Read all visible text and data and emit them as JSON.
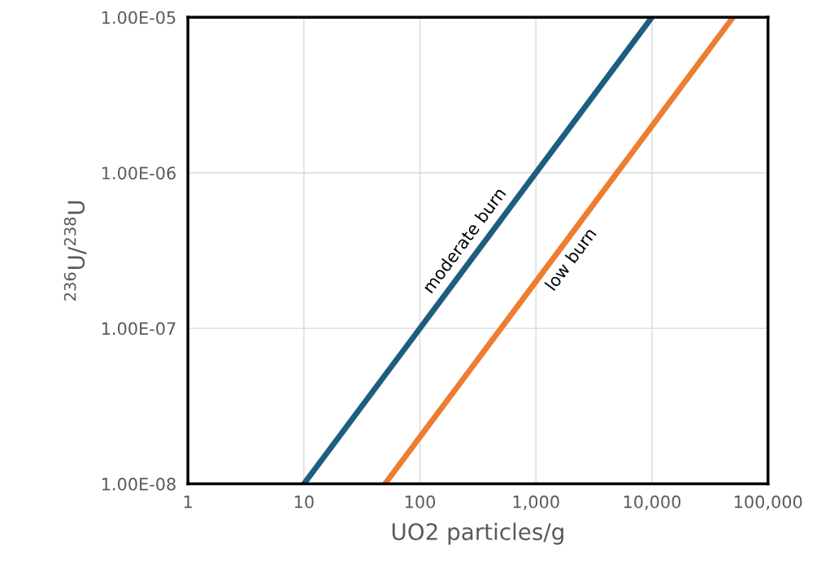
{
  "chart_data": {
    "type": "line",
    "xlabel": "UO2 particles/g",
    "ylabel": "$^{236}$U/$^{238}$U",
    "log": "xy",
    "grid": true,
    "legend": false,
    "marker": "none",
    "line_style": "solid",
    "xlim": [
      1,
      100000
    ],
    "xticks": [
      1,
      10,
      100,
      {
        "value": 1000,
        "label": "1,000"
      },
      {
        "value": 10000,
        "label": "10,000"
      },
      {
        "value": 100000,
        "label": "100,000"
      }
    ],
    "ylim": [
      1e-08,
      1e-05
    ],
    "yticks": [
      {
        "value": 1e-08,
        "label": "1.00E-08"
      },
      {
        "value": 1e-07,
        "label": "1.00E-07"
      },
      {
        "value": 1e-06,
        "label": "1.00E-06"
      },
      {
        "value": 1e-05,
        "label": "1.00E-05"
      }
    ],
    "series": [
      {
        "name": "moderate burn",
        "color": "#1b5e80",
        "x": [
          10,
          50,
          100,
          500,
          1000,
          5000,
          10000
        ],
        "values": [
          1e-08,
          5e-08,
          1e-07,
          5e-07,
          1e-06,
          5e-06,
          1e-05
        ]
      },
      {
        "name": "low burn",
        "color": "#ed7d31",
        "x": [
          50,
          250,
          500,
          2500,
          5000,
          25000,
          50000
        ],
        "values": [
          1e-08,
          5e-08,
          1e-07,
          5e-07,
          1e-06,
          5e-06,
          1e-05
        ]
      }
    ]
  }
}
